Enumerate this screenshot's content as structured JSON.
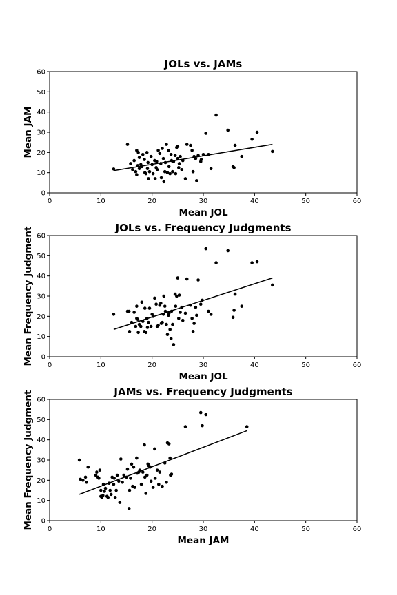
{
  "chart_data": [
    {
      "type": "scatter",
      "title": "JOLs vs. JAMs",
      "xlabel": "Mean JOL",
      "ylabel": "Mean JAM",
      "xlim": [
        0,
        60
      ],
      "ylim": [
        0,
        60
      ],
      "xticks": [
        0,
        10,
        20,
        30,
        40,
        50,
        60
      ],
      "yticks": [
        0,
        10,
        20,
        30,
        40,
        50,
        60
      ],
      "grid": false,
      "points": [
        [
          12.5,
          11.8
        ],
        [
          15.2,
          24.0
        ],
        [
          15.8,
          14.5
        ],
        [
          16.2,
          11.5
        ],
        [
          16.5,
          16.0
        ],
        [
          16.8,
          10.5
        ],
        [
          17.0,
          21.0
        ],
        [
          17.0,
          9.0
        ],
        [
          17.2,
          13.5
        ],
        [
          17.3,
          20.0
        ],
        [
          17.5,
          12.0
        ],
        [
          17.5,
          17.5
        ],
        [
          17.8,
          14.0
        ],
        [
          18.0,
          13.0
        ],
        [
          18.2,
          19.0
        ],
        [
          18.5,
          16.5
        ],
        [
          18.6,
          10.0
        ],
        [
          18.8,
          9.5
        ],
        [
          19.0,
          20.0
        ],
        [
          19.1,
          12.0
        ],
        [
          19.2,
          15.0
        ],
        [
          19.3,
          7.0
        ],
        [
          19.5,
          10.5
        ],
        [
          19.8,
          18.0
        ],
        [
          20.0,
          14.0
        ],
        [
          20.2,
          9.5
        ],
        [
          20.5,
          16.0
        ],
        [
          20.6,
          7.0
        ],
        [
          20.8,
          12.5
        ],
        [
          20.9,
          15.5
        ],
        [
          21.0,
          11.5
        ],
        [
          21.2,
          21.0
        ],
        [
          21.5,
          19.5
        ],
        [
          21.7,
          14.5
        ],
        [
          21.8,
          7.5
        ],
        [
          22.0,
          22.0
        ],
        [
          22.2,
          17.0
        ],
        [
          22.3,
          5.5
        ],
        [
          22.5,
          10.5
        ],
        [
          22.6,
          15.0
        ],
        [
          22.8,
          24.0
        ],
        [
          23.0,
          10.0
        ],
        [
          23.2,
          21.0
        ],
        [
          23.3,
          13.0
        ],
        [
          23.5,
          9.5
        ],
        [
          23.7,
          19.0
        ],
        [
          23.8,
          16.0
        ],
        [
          24.0,
          10.5
        ],
        [
          24.2,
          15.5
        ],
        [
          24.5,
          18.5
        ],
        [
          24.6,
          9.5
        ],
        [
          24.8,
          22.5
        ],
        [
          25.0,
          23.0
        ],
        [
          25.0,
          17.0
        ],
        [
          25.2,
          12.5
        ],
        [
          25.3,
          14.5
        ],
        [
          25.5,
          18.0
        ],
        [
          25.8,
          11.5
        ],
        [
          26.0,
          16.0
        ],
        [
          26.5,
          7.0
        ],
        [
          26.8,
          24.0
        ],
        [
          27.5,
          23.5
        ],
        [
          27.8,
          21.0
        ],
        [
          28.0,
          10.5
        ],
        [
          28.2,
          18.0
        ],
        [
          28.5,
          17.0
        ],
        [
          28.7,
          6.0
        ],
        [
          29.0,
          18.5
        ],
        [
          29.5,
          15.5
        ],
        [
          29.6,
          16.5
        ],
        [
          30.0,
          19.0
        ],
        [
          30.5,
          29.5
        ],
        [
          31.0,
          19.0
        ],
        [
          31.5,
          12.0
        ],
        [
          32.5,
          38.5
        ],
        [
          34.8,
          31.0
        ],
        [
          35.8,
          13.0
        ],
        [
          36.0,
          12.5
        ],
        [
          36.2,
          23.5
        ],
        [
          37.5,
          18.0
        ],
        [
          39.5,
          26.5
        ],
        [
          40.5,
          30.0
        ],
        [
          43.5,
          20.5
        ]
      ],
      "fit_line": [
        [
          12.5,
          11.0
        ],
        [
          43.5,
          24.0
        ]
      ]
    },
    {
      "type": "scatter",
      "title": "JOLs vs. Frequency Judgments",
      "xlabel": "Mean JOL",
      "ylabel": "Mean Frequency Judgment",
      "xlim": [
        0,
        60
      ],
      "ylim": [
        0,
        60
      ],
      "xticks": [
        0,
        10,
        20,
        30,
        40,
        50,
        60
      ],
      "yticks": [
        0,
        10,
        20,
        30,
        40,
        50,
        60
      ],
      "grid": false,
      "points": [
        [
          12.5,
          21.0
        ],
        [
          15.2,
          22.5
        ],
        [
          15.5,
          22.5
        ],
        [
          15.6,
          12.5
        ],
        [
          16.0,
          17.0
        ],
        [
          16.5,
          22.0
        ],
        [
          16.8,
          15.0
        ],
        [
          17.0,
          19.0
        ],
        [
          17.0,
          25.0
        ],
        [
          17.2,
          18.5
        ],
        [
          17.3,
          12.0
        ],
        [
          17.5,
          16.0
        ],
        [
          17.8,
          15.0
        ],
        [
          18.0,
          27.0
        ],
        [
          18.2,
          17.5
        ],
        [
          18.5,
          12.5
        ],
        [
          18.6,
          24.0
        ],
        [
          18.8,
          12.0
        ],
        [
          19.0,
          19.0
        ],
        [
          19.1,
          14.5
        ],
        [
          19.3,
          17.0
        ],
        [
          19.5,
          24.0
        ],
        [
          19.8,
          15.0
        ],
        [
          20.0,
          21.0
        ],
        [
          20.2,
          20.0
        ],
        [
          20.5,
          29.0
        ],
        [
          20.8,
          26.0
        ],
        [
          21.0,
          15.0
        ],
        [
          21.2,
          15.5
        ],
        [
          21.5,
          25.5
        ],
        [
          21.7,
          26.5
        ],
        [
          21.8,
          16.5
        ],
        [
          22.0,
          17.0
        ],
        [
          22.2,
          21.0
        ],
        [
          22.3,
          30.0
        ],
        [
          22.5,
          25.0
        ],
        [
          22.6,
          22.5
        ],
        [
          22.8,
          16.0
        ],
        [
          23.0,
          11.0
        ],
        [
          23.2,
          20.5
        ],
        [
          23.3,
          21.5
        ],
        [
          23.5,
          13.5
        ],
        [
          23.7,
          9.0
        ],
        [
          23.8,
          22.5
        ],
        [
          24.0,
          16.0
        ],
        [
          24.2,
          6.0
        ],
        [
          24.5,
          31.0
        ],
        [
          24.6,
          25.0
        ],
        [
          24.8,
          30.0
        ],
        [
          25.0,
          39.0
        ],
        [
          25.2,
          19.0
        ],
        [
          25.3,
          30.5
        ],
        [
          25.5,
          22.0
        ],
        [
          25.8,
          24.5
        ],
        [
          26.0,
          18.0
        ],
        [
          26.5,
          21.5
        ],
        [
          26.8,
          38.5
        ],
        [
          27.5,
          25.5
        ],
        [
          27.8,
          19.0
        ],
        [
          28.0,
          12.5
        ],
        [
          28.2,
          16.5
        ],
        [
          28.5,
          24.5
        ],
        [
          28.7,
          20.5
        ],
        [
          29.0,
          38.0
        ],
        [
          29.5,
          26.0
        ],
        [
          29.8,
          28.0
        ],
        [
          30.5,
          53.5
        ],
        [
          31.0,
          22.5
        ],
        [
          31.5,
          21.0
        ],
        [
          32.5,
          46.5
        ],
        [
          34.8,
          52.5
        ],
        [
          35.8,
          19.5
        ],
        [
          36.0,
          23.0
        ],
        [
          36.2,
          31.0
        ],
        [
          37.5,
          25.0
        ],
        [
          39.5,
          46.5
        ],
        [
          40.5,
          47.0
        ],
        [
          43.5,
          35.5
        ]
      ],
      "fit_line": [
        [
          12.5,
          13.5
        ],
        [
          43.5,
          39.0
        ]
      ]
    },
    {
      "type": "scatter",
      "title": "JAMs vs. Frequency Judgments",
      "xlabel": "Mean JAM",
      "ylabel": "Mean Frequency Judgment",
      "xlim": [
        0,
        60
      ],
      "ylim": [
        0,
        60
      ],
      "xticks": [
        0,
        10,
        20,
        30,
        40,
        50,
        60
      ],
      "yticks": [
        0,
        10,
        20,
        30,
        40,
        50,
        60
      ],
      "grid": false,
      "points": [
        [
          5.8,
          30.0
        ],
        [
          6.0,
          20.5
        ],
        [
          6.5,
          20.0
        ],
        [
          7.0,
          21.5
        ],
        [
          7.2,
          19.0
        ],
        [
          7.5,
          26.5
        ],
        [
          9.0,
          22.5
        ],
        [
          9.2,
          24.0
        ],
        [
          9.4,
          21.5
        ],
        [
          9.6,
          21.0
        ],
        [
          9.8,
          25.0
        ],
        [
          10.0,
          15.0
        ],
        [
          10.0,
          12.0
        ],
        [
          10.2,
          11.5
        ],
        [
          10.4,
          12.5
        ],
        [
          10.5,
          18.0
        ],
        [
          10.7,
          14.5
        ],
        [
          10.9,
          16.0
        ],
        [
          11.2,
          12.0
        ],
        [
          11.4,
          11.5
        ],
        [
          11.6,
          18.5
        ],
        [
          11.8,
          15.0
        ],
        [
          12.0,
          13.0
        ],
        [
          12.2,
          21.5
        ],
        [
          12.5,
          18.0
        ],
        [
          12.6,
          21.0
        ],
        [
          12.8,
          11.5
        ],
        [
          13.0,
          15.0
        ],
        [
          13.2,
          22.5
        ],
        [
          13.5,
          19.5
        ],
        [
          13.7,
          9.0
        ],
        [
          13.9,
          30.5
        ],
        [
          14.2,
          19.0
        ],
        [
          14.5,
          22.5
        ],
        [
          15.0,
          21.5
        ],
        [
          15.2,
          25.5
        ],
        [
          15.5,
          6.0
        ],
        [
          15.6,
          15.0
        ],
        [
          15.8,
          21.0
        ],
        [
          16.0,
          28.0
        ],
        [
          16.2,
          17.0
        ],
        [
          16.4,
          26.5
        ],
        [
          16.6,
          16.5
        ],
        [
          17.0,
          31.0
        ],
        [
          17.1,
          23.5
        ],
        [
          17.4,
          24.0
        ],
        [
          17.6,
          25.0
        ],
        [
          17.9,
          18.0
        ],
        [
          18.2,
          24.0
        ],
        [
          18.5,
          37.5
        ],
        [
          18.6,
          21.5
        ],
        [
          18.8,
          13.5
        ],
        [
          19.0,
          22.5
        ],
        [
          19.2,
          28.0
        ],
        [
          19.4,
          27.0
        ],
        [
          19.6,
          26.5
        ],
        [
          19.8,
          19.5
        ],
        [
          20.2,
          16.5
        ],
        [
          20.5,
          35.5
        ],
        [
          20.6,
          21.0
        ],
        [
          21.0,
          25.0
        ],
        [
          21.3,
          18.0
        ],
        [
          21.5,
          24.0
        ],
        [
          22.0,
          17.0
        ],
        [
          22.5,
          28.5
        ],
        [
          22.8,
          19.0
        ],
        [
          23.0,
          38.5
        ],
        [
          23.3,
          38.0
        ],
        [
          23.5,
          31.0
        ],
        [
          23.6,
          22.5
        ],
        [
          23.8,
          23.0
        ],
        [
          26.5,
          46.5
        ],
        [
          29.5,
          53.5
        ],
        [
          29.8,
          47.0
        ],
        [
          30.5,
          52.5
        ],
        [
          38.5,
          46.5
        ]
      ],
      "fit_line": [
        [
          5.8,
          13.0
        ],
        [
          38.5,
          44.5
        ]
      ]
    }
  ]
}
